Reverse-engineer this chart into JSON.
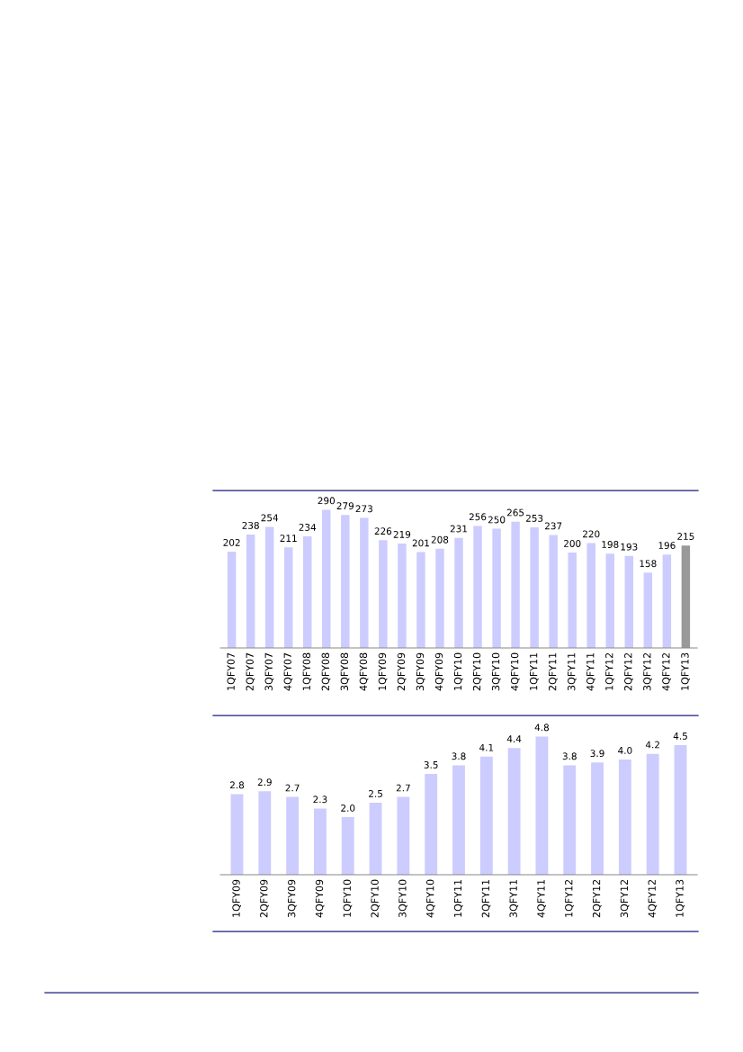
{
  "chart_data": [
    {
      "type": "bar",
      "categories": [
        "1QFY07",
        "2QFY07",
        "3QFY07",
        "4QFY07",
        "1QFY08",
        "2QFY08",
        "3QFY08",
        "4QFY08",
        "1QFY09",
        "2QFY09",
        "3QFY09",
        "4QFY09",
        "1QFY10",
        "2QFY10",
        "3QFY10",
        "4QFY10",
        "1QFY11",
        "2QFY11",
        "3QFY11",
        "4QFY11",
        "1QFY12",
        "2QFY12",
        "3QFY12",
        "4QFY12",
        "1QFY13"
      ],
      "values": [
        202,
        238,
        254,
        211,
        234,
        290,
        279,
        273,
        226,
        219,
        201,
        208,
        231,
        256,
        250,
        265,
        253,
        237,
        200,
        220,
        198,
        193,
        158,
        196,
        215
      ],
      "colors": [
        "#ccccff",
        "#ccccff",
        "#ccccff",
        "#ccccff",
        "#ccccff",
        "#ccccff",
        "#ccccff",
        "#ccccff",
        "#ccccff",
        "#ccccff",
        "#ccccff",
        "#ccccff",
        "#ccccff",
        "#ccccff",
        "#ccccff",
        "#ccccff",
        "#ccccff",
        "#ccccff",
        "#ccccff",
        "#ccccff",
        "#ccccff",
        "#ccccff",
        "#ccccff",
        "#ccccff",
        "#999999"
      ],
      "data_labels": true,
      "tick_labels": "x",
      "grid": false,
      "legend": false
    },
    {
      "type": "bar",
      "categories": [
        "1QFY09",
        "2QFY09",
        "3QFY09",
        "4QFY09",
        "1QFY10",
        "2QFY10",
        "3QFY10",
        "4QFY10",
        "1QFY11",
        "2QFY11",
        "3QFY11",
        "4QFY11",
        "1QFY12",
        "2QFY12",
        "3QFY12",
        "4QFY12",
        "1QFY13"
      ],
      "values": [
        2.8,
        2.9,
        2.7,
        2.3,
        2.0,
        2.5,
        2.7,
        3.5,
        3.8,
        4.1,
        4.4,
        4.8,
        3.8,
        3.9,
        4.0,
        4.2,
        4.5
      ],
      "color": "#ccccff",
      "value_labels": [
        "2.8",
        "2.9",
        "2.7",
        "2.3",
        "2.0",
        "2.5",
        "2.7",
        "3.5",
        "3.8",
        "4.1",
        "4.4",
        "4.8",
        "3.8",
        "3.9",
        "4.0",
        "4.2",
        "4.5"
      ],
      "tick_labels": "x",
      "grid": false,
      "legend": false
    }
  ]
}
